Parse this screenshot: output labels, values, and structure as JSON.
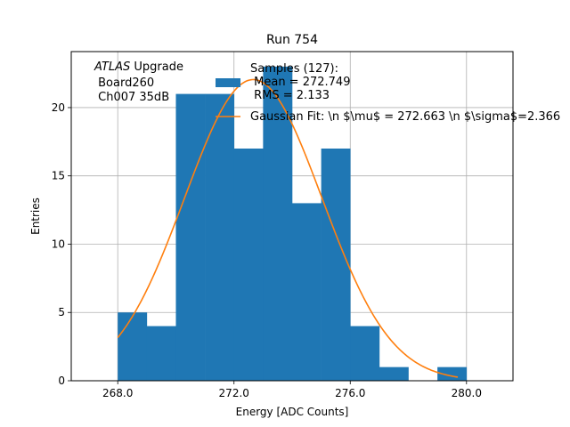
{
  "chart_data": {
    "type": "bar",
    "title": "Run 754",
    "xlabel": "Energy [ADC Counts]",
    "ylabel": "Entries",
    "xlim": [
      266.4,
      281.6
    ],
    "ylim": [
      0,
      24.1
    ],
    "grid": true,
    "x_ticks": [
      268.0,
      272.0,
      276.0,
      280.0
    ],
    "x_tick_labels": [
      "268.0",
      "272.0",
      "276.0",
      "280.0"
    ],
    "y_ticks": [
      0,
      5,
      10,
      15,
      20
    ],
    "y_tick_labels": [
      "0",
      "5",
      "10",
      "15",
      "20"
    ],
    "bins": [
      {
        "x0": 268,
        "x1": 269,
        "count": 5
      },
      {
        "x0": 269,
        "x1": 270,
        "count": 4
      },
      {
        "x0": 270,
        "x1": 271,
        "count": 21
      },
      {
        "x0": 271,
        "x1": 272,
        "count": 21
      },
      {
        "x0": 272,
        "x1": 273,
        "count": 17
      },
      {
        "x0": 273,
        "x1": 274,
        "count": 23
      },
      {
        "x0": 274,
        "x1": 275,
        "count": 13
      },
      {
        "x0": 275,
        "x1": 276,
        "count": 17
      },
      {
        "x0": 276,
        "x1": 277,
        "count": 4
      },
      {
        "x0": 277,
        "x1": 278,
        "count": 1
      },
      {
        "x0": 278,
        "x1": 279,
        "count": 0
      },
      {
        "x0": 279,
        "x1": 280,
        "count": 1
      }
    ],
    "fit": {
      "mu": 272.663,
      "sigma": 2.366,
      "amplitude": 22.05,
      "x_range": [
        268.0,
        279.7
      ]
    },
    "colors": {
      "bars": "#1f77b4",
      "fit": "#ff7f0e",
      "grid": "#b0b0b0"
    },
    "legend": {
      "placement": "top-center",
      "samples_label": "Samples (127):\n Mean = 272.749\n RMS = 2.133",
      "fit_label": "Gaussian Fit: \\n $\\mu$ = 272.663 \\n $\\sigma$=2.366"
    },
    "annotation": {
      "experiment": "ATLAS",
      "suffix": " Upgrade",
      "line2": " Board260",
      "line3": " Ch007 35dB"
    }
  }
}
